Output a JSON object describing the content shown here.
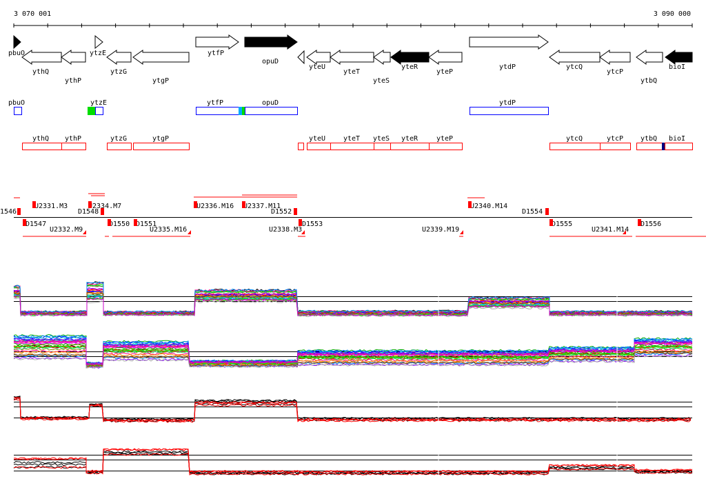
{
  "ruler": {
    "start_label": "3 070 001",
    "end_label": "3 090 000"
  },
  "genes": [
    {
      "name": "pbuO",
      "strand": "+",
      "fill": "black"
    },
    {
      "name": "ythQ",
      "strand": "-",
      "fill": "white"
    },
    {
      "name": "ythP",
      "strand": "-",
      "fill": "white"
    },
    {
      "name": "ytzE",
      "strand": "+",
      "fill": "white"
    },
    {
      "name": "ytzG",
      "strand": "-",
      "fill": "white"
    },
    {
      "name": "ytgP",
      "strand": "-",
      "fill": "white"
    },
    {
      "name": "ytfP",
      "strand": "+",
      "fill": "white"
    },
    {
      "name": "opuD",
      "strand": "+",
      "fill": "black"
    },
    {
      "name": "yteU",
      "strand": "-",
      "fill": "white"
    },
    {
      "name": "yteT",
      "strand": "-",
      "fill": "white"
    },
    {
      "name": "yteS",
      "strand": "-",
      "fill": "white"
    },
    {
      "name": "yteR",
      "strand": "-",
      "fill": "black"
    },
    {
      "name": "yteP",
      "strand": "-",
      "fill": "white"
    },
    {
      "name": "ytdP",
      "strand": "+",
      "fill": "white"
    },
    {
      "name": "ytcQ",
      "strand": "-",
      "fill": "white"
    },
    {
      "name": "ytcP",
      "strand": "-",
      "fill": "white"
    },
    {
      "name": "ytbQ",
      "strand": "-",
      "fill": "white"
    },
    {
      "name": "bioI",
      "strand": "-",
      "fill": "black"
    }
  ],
  "forward_boxes": [
    "pbuO",
    "ytzE",
    "ytfP",
    "opuD",
    "ytdP"
  ],
  "reverse_boxes": [
    "ythQ",
    "ythP",
    "ytzG",
    "ytgP",
    "yteU",
    "yteT",
    "yteS",
    "yteR",
    "yteP",
    "ytcQ",
    "ytcP",
    "ytbQ",
    "bioI"
  ],
  "segments_top": [
    "1546",
    "U2331.M3",
    "U2334.M7",
    "D1548",
    "U2336.M16",
    "U2337.M11",
    "D1552",
    "U2340.M14",
    "D1554"
  ],
  "segments_bottom": [
    "D1547",
    "U2332.M9",
    "D1550",
    "D1551",
    "U2335.M16",
    "U2338.M3",
    "D1553",
    "U2339.M19",
    "D1555",
    "U2341.M14",
    "D1556"
  ],
  "colors": {
    "box_forward": "#0000ff",
    "box_reverse": "#ff0000",
    "marker": "#ff0000",
    "green": "#00dd00",
    "cyan": "#00aaff",
    "navy": "#000080"
  }
}
